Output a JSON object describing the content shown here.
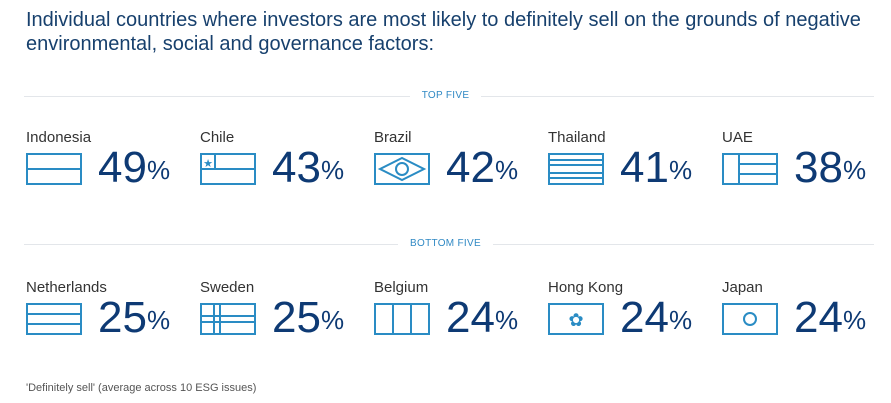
{
  "title": "Individual countries where investors are most likely to definitely sell on the grounds of negative environmental, social and governance factors:",
  "top_label": "TOP FIVE",
  "bottom_label": "BOTTOM FIVE",
  "top": [
    {
      "country": "Indonesia",
      "value": "49",
      "unit": "%",
      "flag": "indonesia"
    },
    {
      "country": "Chile",
      "value": "43",
      "unit": "%",
      "flag": "chile"
    },
    {
      "country": "Brazil",
      "value": "42",
      "unit": "%",
      "flag": "brazil"
    },
    {
      "country": "Thailand",
      "value": "41",
      "unit": "%",
      "flag": "thailand"
    },
    {
      "country": "UAE",
      "value": "38",
      "unit": "%",
      "flag": "uae"
    }
  ],
  "bottom": [
    {
      "country": "Netherlands",
      "value": "25",
      "unit": "%",
      "flag": "netherlands"
    },
    {
      "country": "Sweden",
      "value": "25",
      "unit": "%",
      "flag": "sweden"
    },
    {
      "country": "Belgium",
      "value": "24",
      "unit": "%",
      "flag": "belgium"
    },
    {
      "country": "Hong Kong",
      "value": "24",
      "unit": "%",
      "flag": "hongkong"
    },
    {
      "country": "Japan",
      "value": "24",
      "unit": "%",
      "flag": "japan"
    }
  ],
  "footnote": "'Definitely sell' (average across 10 ESG issues)",
  "colors": {
    "flag": "#2a8cc4",
    "number": "#0e3a74"
  }
}
